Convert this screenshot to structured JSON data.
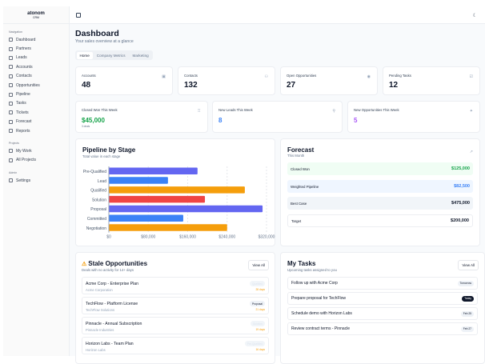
{
  "brand": {
    "name": "atonom",
    "sub": "CRM"
  },
  "sidebar": {
    "sections": [
      {
        "title": "Navigation",
        "items": [
          "Dashboard",
          "Partners",
          "Leads",
          "Accounts",
          "Contacts",
          "Opportunities",
          "Pipeline",
          "Tasks",
          "Tickets",
          "Forecast",
          "Reports"
        ]
      },
      {
        "title": "Projects",
        "items": [
          "My Work",
          "All Projects"
        ]
      },
      {
        "title": "Admin",
        "items": [
          "Settings"
        ]
      }
    ]
  },
  "header": {
    "title": "Dashboard",
    "subtitle": "Your sales overview at a glance"
  },
  "tabs": [
    "Home",
    "Company Metrics",
    "Marketing"
  ],
  "stats": [
    {
      "label": "Accounts",
      "value": "48"
    },
    {
      "label": "Contacts",
      "value": "132"
    },
    {
      "label": "Open Opportunities",
      "value": "27"
    },
    {
      "label": "Pending Tasks",
      "value": "12"
    }
  ],
  "weekly": [
    {
      "label": "Closed Won This Week",
      "value": "$45,000",
      "note": "3 deals",
      "color": "#16a34a"
    },
    {
      "label": "New Leads This Week",
      "value": "8",
      "color": "#3b82f6"
    },
    {
      "label": "New Opportunities This Week",
      "value": "5",
      "color": "#a855f7"
    }
  ],
  "pipeline": {
    "title": "Pipeline by Stage",
    "subtitle": "Total value in each stage"
  },
  "chart_data": {
    "type": "bar",
    "orientation": "horizontal",
    "categories": [
      "Pre-Qualified",
      "Lead",
      "Qualified",
      "Solution",
      "Proposal",
      "Committed",
      "Negotiation"
    ],
    "values": [
      180000,
      120000,
      276000,
      195000,
      312000,
      151000,
      240000
    ],
    "colors": [
      "#6366f1",
      "#3b82f6",
      "#f59e0b",
      "#ef4444",
      "#6366f1",
      "#3b82f6",
      "#f59e0b"
    ],
    "xlim": [
      0,
      320000
    ],
    "xticks": [
      "$0",
      "$80,000",
      "$160,000",
      "$240,000",
      "$320,000"
    ],
    "grid": true
  },
  "forecast": {
    "title": "Forecast",
    "subtitle": "This Month",
    "rows": [
      {
        "label": "Closed Won",
        "value": "$125,000"
      },
      {
        "label": "Weighted Pipeline",
        "value": "$82,500"
      },
      {
        "label": "Best Case",
        "value": "$475,000"
      },
      {
        "label": "Target",
        "value": "$200,000"
      }
    ]
  },
  "stale": {
    "title": "Stale Opportunities",
    "subtitle": "Deals with no activity for 14+ days",
    "view_all": "View All",
    "items": [
      {
        "name": "Acme Corp - Enterprise Plan",
        "company": "Acme Corporation",
        "stage": "Qualified",
        "days": "28 days"
      },
      {
        "name": "TechFlow - Platform License",
        "company": "TechFlow Solutions",
        "stage": "Proposal",
        "days": "21 days"
      },
      {
        "name": "Pinnacle - Annual Subscription",
        "company": "Pinnacle Industries",
        "stage": "Solution",
        "days": "19 days"
      },
      {
        "name": "Horizon Labs - Team Plan",
        "company": "Horizon Labs",
        "stage": "Pre-Qualified",
        "days": "16 days"
      }
    ]
  },
  "tasks": {
    "title": "My Tasks",
    "subtitle": "Upcoming tasks assigned to you",
    "view_all": "View All",
    "items": [
      {
        "name": "Follow up with Acme Corp",
        "due": "Tomorrow"
      },
      {
        "name": "Prepare proposal for TechFlow",
        "due": "Today"
      },
      {
        "name": "Schedule demo with Horizon Labs",
        "due": "Feb 25"
      },
      {
        "name": "Review contract terms - Pinnacle",
        "due": "Feb 27"
      }
    ]
  }
}
